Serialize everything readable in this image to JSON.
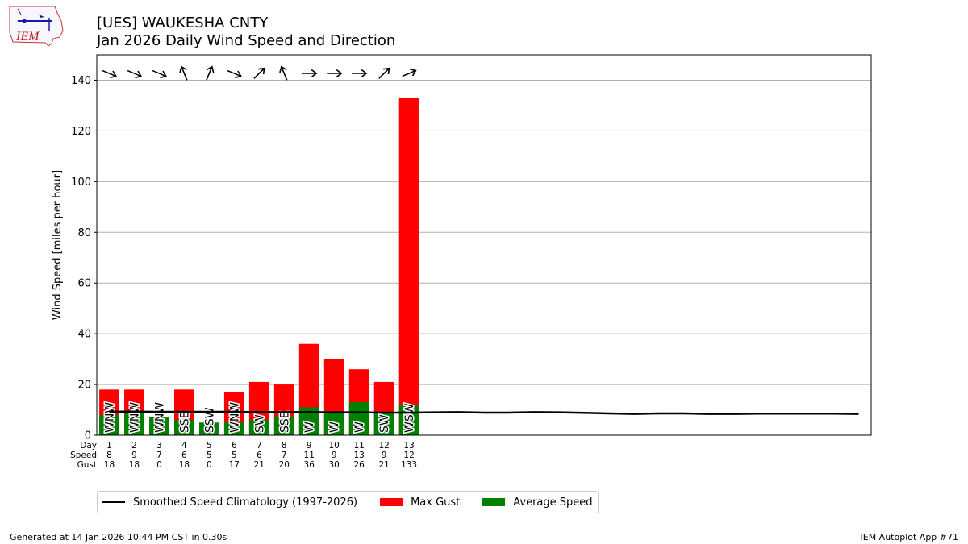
{
  "header": {
    "logo_text": "IEM",
    "title": "[UES] WAUKESHA CNTY",
    "subtitle": "Jan 2026 Daily Wind Speed and Direction"
  },
  "chart_data": {
    "type": "bar",
    "ylabel": "Wind Speed [miles per hour]",
    "ylim": [
      0,
      150
    ],
    "xlim": [
      0.5,
      31.5
    ],
    "yticks": [
      0,
      20,
      40,
      60,
      80,
      100,
      120,
      140
    ],
    "grid": true,
    "row_labels": [
      "Day",
      "Speed",
      "Gust"
    ],
    "days": [
      1,
      2,
      3,
      4,
      5,
      6,
      7,
      8,
      9,
      10,
      11,
      12,
      13
    ],
    "speed": [
      8,
      9,
      7,
      6,
      5,
      5,
      6,
      7,
      11,
      9,
      13,
      9,
      12
    ],
    "gust": [
      18,
      18,
      0,
      18,
      0,
      17,
      21,
      20,
      36,
      30,
      26,
      21,
      133
    ],
    "directions": [
      "WNW",
      "WNW",
      "WNW",
      "SSE",
      "SSW",
      "WNW",
      "SW",
      "SSE",
      "W",
      "W",
      "W",
      "SW",
      "WSW"
    ],
    "series": [
      {
        "name": "Max Gust",
        "color": "#ff0000",
        "values": [
          18,
          18,
          0,
          18,
          0,
          17,
          21,
          20,
          36,
          30,
          26,
          21,
          133
        ]
      },
      {
        "name": "Average Speed",
        "color": "#008000",
        "values": [
          8,
          9,
          7,
          6,
          5,
          5,
          6,
          7,
          11,
          9,
          13,
          9,
          12
        ]
      }
    ],
    "climatology": {
      "name": "Smoothed Speed Climatology (1997-2026)",
      "color": "#000000",
      "x": [
        1,
        2,
        3,
        4,
        5,
        6,
        7,
        8,
        9,
        10,
        11,
        12,
        13,
        14,
        15,
        16,
        17,
        18,
        19,
        20,
        21,
        22,
        23,
        24,
        25,
        26,
        27,
        28,
        29,
        30,
        31
      ],
      "values": [
        9.3,
        9.3,
        9.2,
        9.2,
        9.2,
        9.2,
        9.1,
        9.1,
        9.1,
        9.0,
        9.0,
        8.9,
        8.9,
        9.0,
        9.1,
        8.9,
        8.9,
        9.1,
        9.0,
        8.8,
        8.6,
        8.4,
        8.6,
        8.6,
        8.4,
        8.4,
        8.5,
        8.5,
        8.5,
        8.5,
        8.4
      ]
    },
    "legend_position": "below"
  },
  "footer": {
    "generated": "Generated at 14 Jan 2026 10:44 PM CST in 0.30s",
    "app": "IEM Autoplot App #71"
  }
}
